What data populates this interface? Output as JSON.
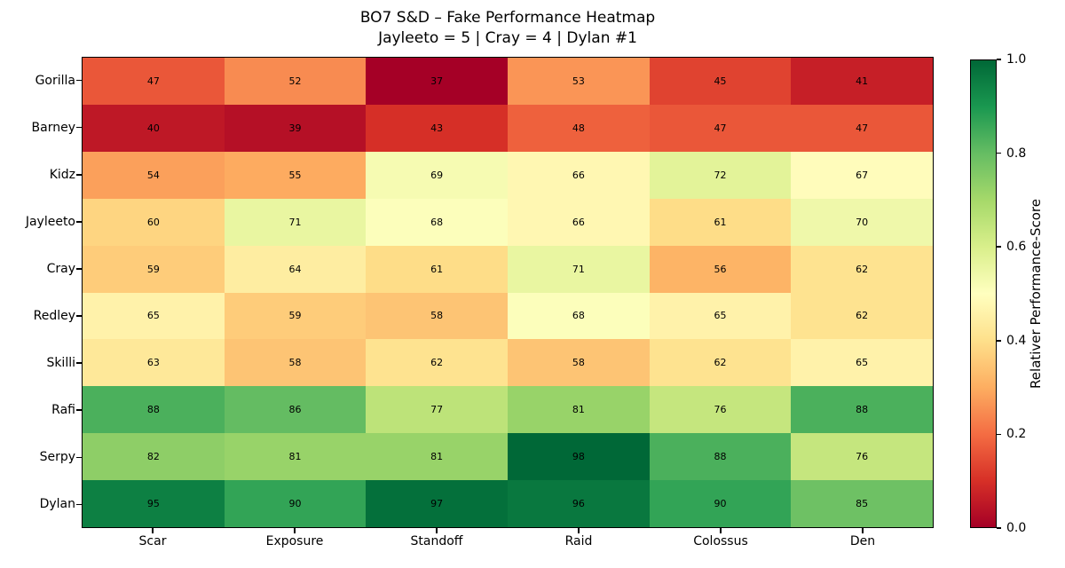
{
  "chart_data": {
    "type": "heatmap",
    "title": "BO7 S&D – Fake Performance Heatmap",
    "subtitle": "Jayleeto = 5 | Cray = 4 | Dylan #1",
    "rows": [
      "Gorilla",
      "Barney",
      "Kidz",
      "Jayleeto",
      "Cray",
      "Redley",
      "Skilli",
      "Rafi",
      "Serpy",
      "Dylan"
    ],
    "columns": [
      "Scar",
      "Exposure",
      "Standoff",
      "Raid",
      "Colossus",
      "Den"
    ],
    "values": [
      [
        47,
        52,
        37,
        53,
        45,
        41
      ],
      [
        40,
        39,
        43,
        48,
        47,
        47
      ],
      [
        54,
        55,
        69,
        66,
        72,
        67
      ],
      [
        60,
        71,
        68,
        66,
        61,
        70
      ],
      [
        59,
        64,
        61,
        71,
        56,
        62
      ],
      [
        65,
        59,
        58,
        68,
        65,
        62
      ],
      [
        63,
        58,
        62,
        58,
        62,
        65
      ],
      [
        88,
        86,
        77,
        81,
        76,
        88
      ],
      [
        82,
        81,
        81,
        98,
        88,
        76
      ],
      [
        95,
        90,
        97,
        96,
        90,
        85
      ]
    ],
    "annotations": true,
    "colormap": {
      "name": "RdYlGn",
      "stops": [
        "#a50026",
        "#d73027",
        "#f46d43",
        "#fdae61",
        "#fee08b",
        "#ffffbf",
        "#d9ef8b",
        "#a6d96a",
        "#66bd63",
        "#1a9850",
        "#006837"
      ]
    },
    "normalization": {
      "vmin": 37,
      "vmax": 98
    },
    "colorbar": {
      "label": "Relativer Performance-Score",
      "ticks": [
        "0.0",
        "0.2",
        "0.4",
        "0.6",
        "0.8",
        "1.0"
      ],
      "range": [
        0.0,
        1.0
      ],
      "position": "right"
    },
    "grid": false,
    "text_color": "#000000",
    "border_color": "#000000"
  }
}
